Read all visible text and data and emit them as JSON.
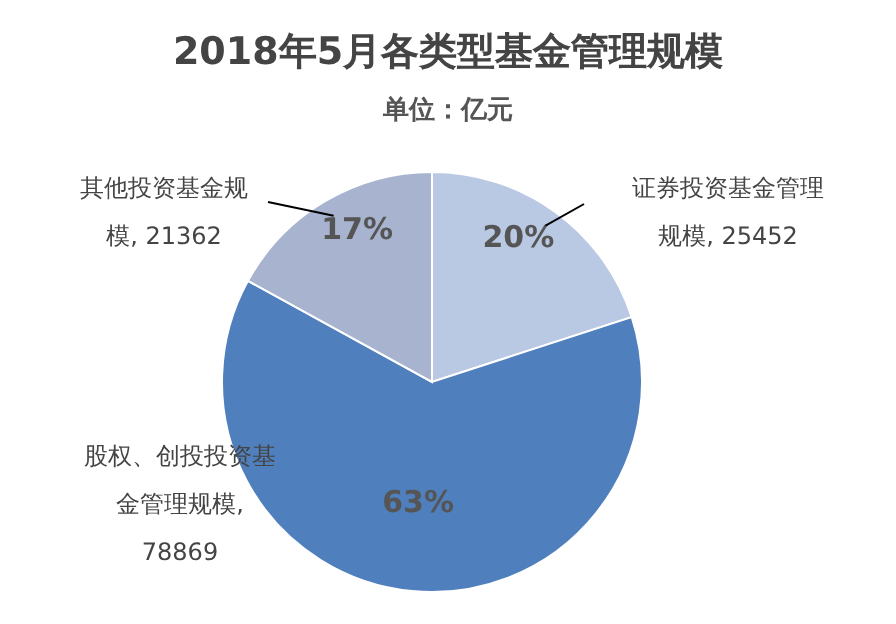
{
  "chart_data": {
    "type": "pie",
    "title": "2018年5月各类型基金管理规模",
    "subtitle": "单位：亿元",
    "categories": [
      "证券投资基金管理规模, 25452",
      "股权、创投投资基金管理规模, 78869",
      "其他投资基金规模, 21362"
    ],
    "values": [
      20,
      63,
      17
    ],
    "colors": [
      "#b9c9e3",
      "#4f7fbc",
      "#a7b3cf"
    ],
    "value_labels": [
      "20%",
      "63%",
      "17%"
    ]
  }
}
